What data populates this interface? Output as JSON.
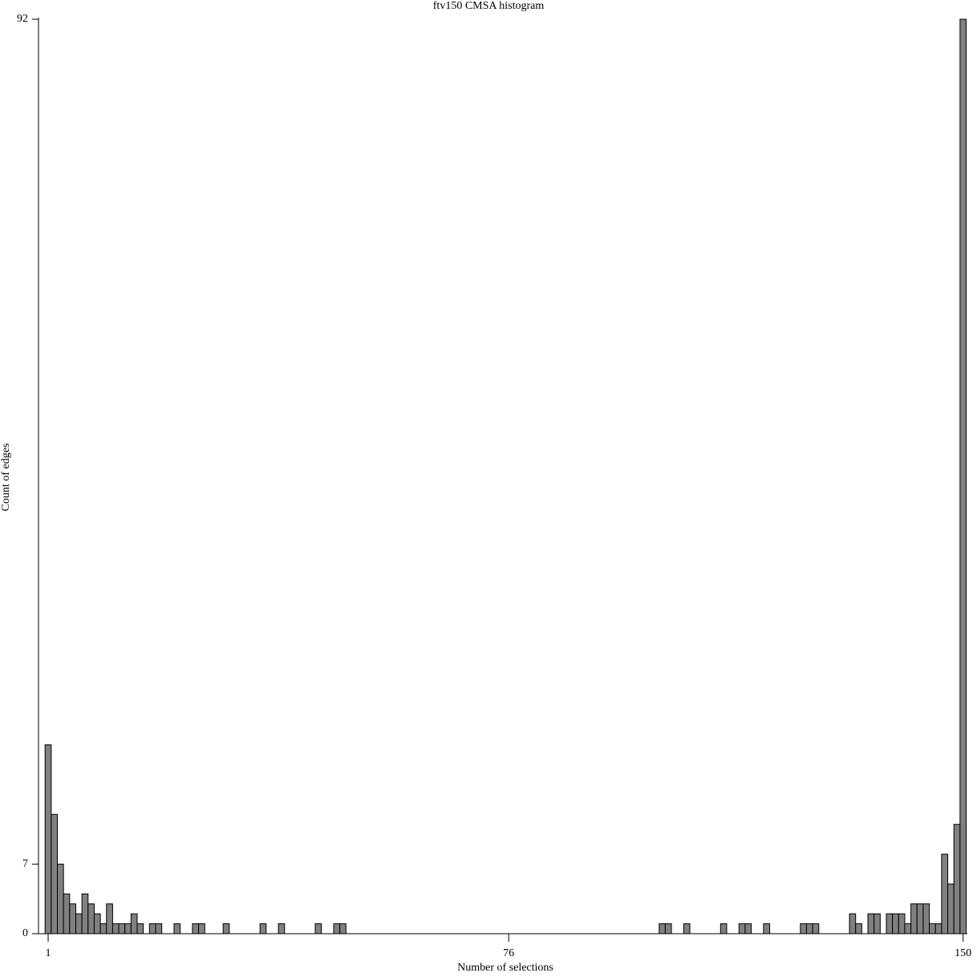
{
  "chart_data": {
    "type": "histogram",
    "title": "ftv150 CMSA histogram",
    "xlabel": "Number of selections",
    "ylabel": "Count of edges",
    "bins": [
      0.5,
      1.5,
      2.5,
      3.5,
      4.5,
      5.5,
      6.5,
      7.5,
      8.5,
      9.5,
      10.5,
      11.5,
      12.5,
      13.5,
      14.5,
      15.5,
      16.5,
      17.5,
      18.5,
      19.5,
      20.5,
      21.5,
      22.5,
      23.5,
      24.5,
      25.5,
      26.5,
      27.5,
      28.5,
      29.5,
      30.5,
      31.5,
      32.5,
      33.5,
      34.5,
      35.5,
      36.5,
      37.5,
      38.5,
      39.5,
      40.5,
      41.5,
      42.5,
      43.5,
      44.5,
      45.5,
      46.5,
      47.5,
      48.5,
      49.5,
      50.5,
      51.5,
      52.5,
      53.5,
      54.5,
      55.5,
      56.5,
      57.5,
      58.5,
      59.5,
      60.5,
      61.5,
      62.5,
      63.5,
      64.5,
      65.5,
      66.5,
      67.5,
      68.5,
      69.5,
      70.5,
      71.5,
      72.5,
      73.5,
      74.5,
      75.5,
      76.5,
      77.5,
      78.5,
      79.5,
      80.5,
      81.5,
      82.5,
      83.5,
      84.5,
      85.5,
      86.5,
      87.5,
      88.5,
      89.5,
      90.5,
      91.5,
      92.5,
      93.5,
      94.5,
      95.5,
      96.5,
      97.5,
      98.5,
      99.5,
      100.5,
      101.5,
      102.5,
      103.5,
      104.5,
      105.5,
      106.5,
      107.5,
      108.5,
      109.5,
      110.5,
      111.5,
      112.5,
      113.5,
      114.5,
      115.5,
      116.5,
      117.5,
      118.5,
      119.5,
      120.5,
      121.5,
      122.5,
      123.5,
      124.5,
      125.5,
      126.5,
      127.5,
      128.5,
      129.5,
      130.5,
      131.5,
      132.5,
      133.5,
      134.5,
      135.5,
      136.5,
      137.5,
      138.5,
      139.5,
      140.5,
      141.5,
      142.5,
      143.5,
      144.5,
      145.5,
      146.5,
      147.5,
      148.5,
      149.5,
      150.5
    ],
    "values": [
      19,
      12,
      7,
      4,
      3,
      2,
      4,
      3,
      2,
      1,
      3,
      1,
      1,
      1,
      2,
      1,
      0,
      1,
      1,
      0,
      0,
      1,
      0,
      0,
      1,
      1,
      0,
      0,
      0,
      1,
      0,
      0,
      0,
      0,
      0,
      1,
      0,
      0,
      1,
      0,
      0,
      0,
      0,
      0,
      1,
      0,
      0,
      1,
      1,
      0,
      0,
      0,
      0,
      0,
      0,
      0,
      0,
      0,
      0,
      0,
      0,
      0,
      0,
      0,
      0,
      0,
      0,
      0,
      0,
      0,
      0,
      0,
      0,
      0,
      0,
      0,
      0,
      0,
      0,
      0,
      0,
      0,
      0,
      0,
      0,
      0,
      0,
      0,
      0,
      0,
      0,
      0,
      0,
      0,
      0,
      0,
      0,
      0,
      0,
      0,
      1,
      1,
      0,
      0,
      1,
      0,
      0,
      0,
      0,
      0,
      1,
      0,
      0,
      1,
      1,
      0,
      0,
      1,
      0,
      0,
      0,
      0,
      0,
      1,
      1,
      1,
      0,
      0,
      0,
      0,
      0,
      2,
      1,
      0,
      2,
      2,
      0,
      2,
      2,
      2,
      1,
      3,
      3,
      3,
      1,
      1,
      8,
      5,
      11,
      92
    ],
    "color": "#808080",
    "xlim": [
      0.5,
      150.5
    ],
    "xticks": [
      1,
      76,
      150
    ],
    "ylim": [
      0,
      92
    ],
    "yticks": [
      0,
      7,
      92
    ]
  }
}
